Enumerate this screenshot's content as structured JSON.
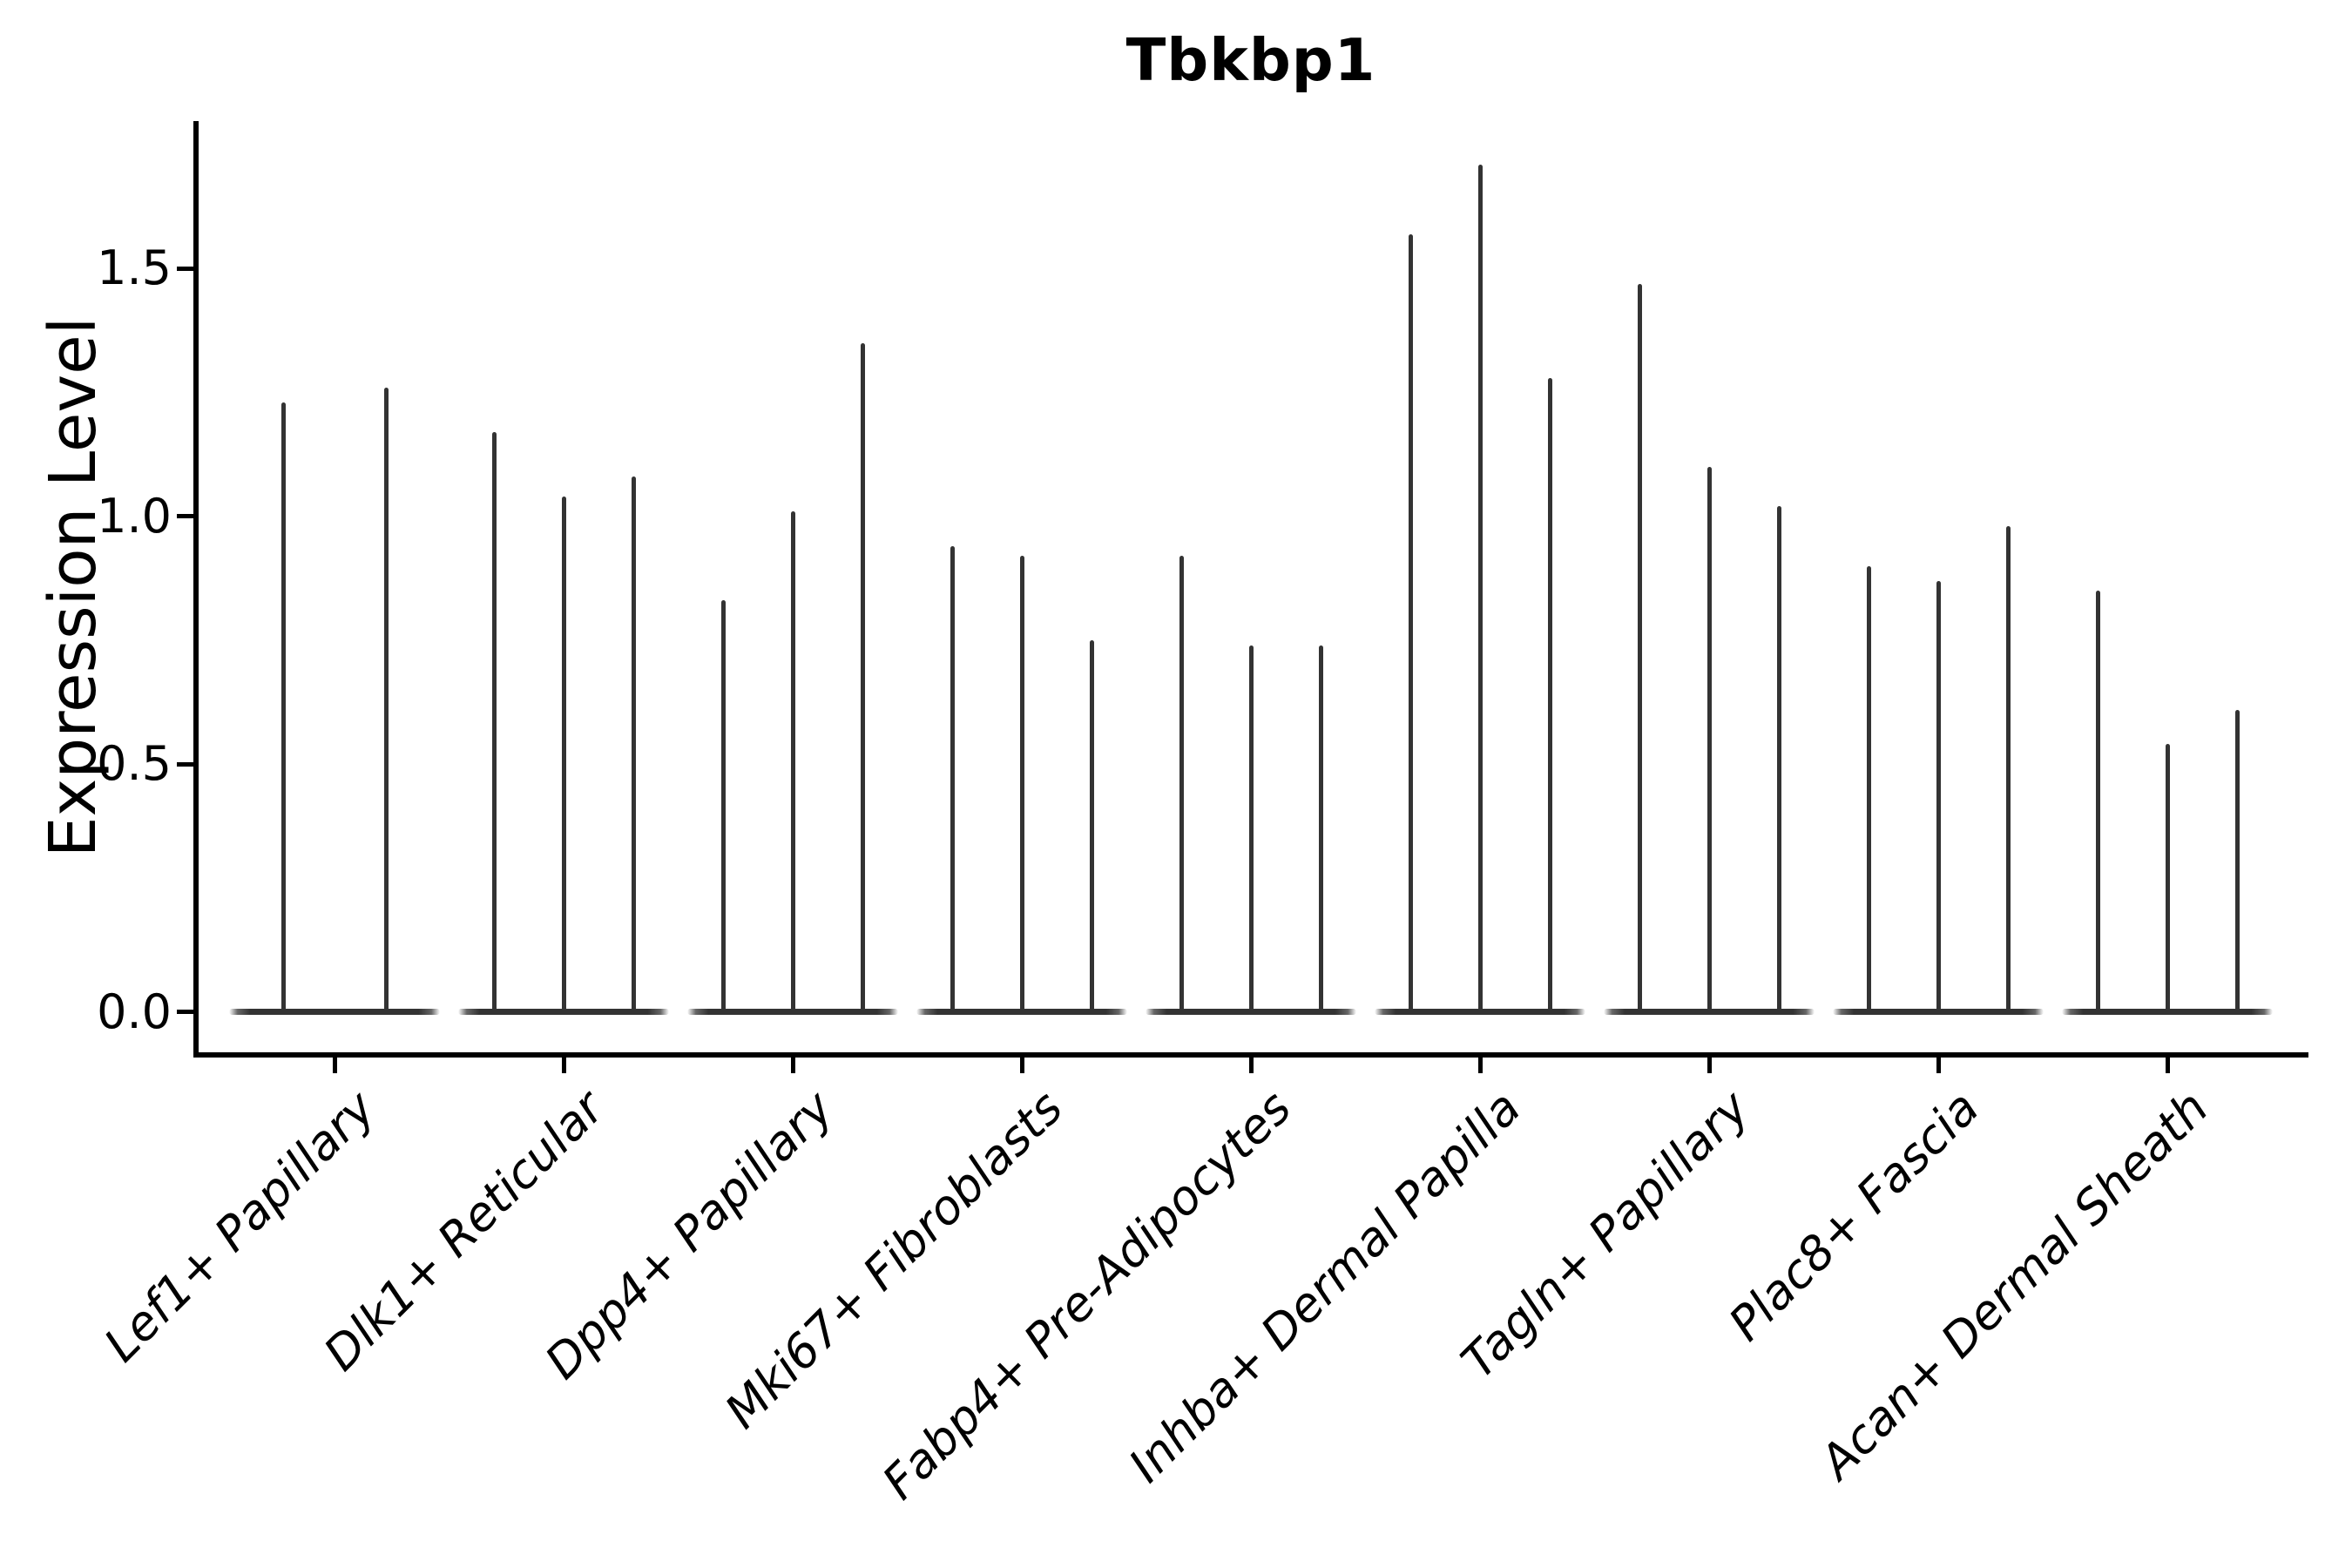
{
  "title": "Tbkbp1",
  "colors": {
    "violin": "#333333",
    "axis": "#000000",
    "background": "#ffffff"
  },
  "y_axis": {
    "label": "Expression Level",
    "tick_labels": [
      "0.0",
      "0.5",
      "1.0",
      "1.5"
    ]
  },
  "chart_data": {
    "type": "violin",
    "title": "Tbkbp1",
    "xlabel": "",
    "ylabel": "Expression Level",
    "ylim": [
      -0.09,
      1.8
    ],
    "yticks": [
      0.0,
      0.5,
      1.0,
      1.5
    ],
    "grid": false,
    "legend_position": "none",
    "x_tick_rotation": 45,
    "categories": [
      "Lef1+ Papillary",
      "Dlk1+ Reticular",
      "Dpp4+ Papillary",
      "Mki67+ Fibroblasts",
      "Fabp4+ Pre-Adipocytes",
      "Inhba+ Dermal Papilla",
      "Tagln+ Papillary",
      "Plac8+ Fascia",
      "Acan+ Dermal Sheath"
    ],
    "groups": [
      {
        "label": "Lef1+ Papillary",
        "violin_peaks": [
          1.23,
          1.26
        ]
      },
      {
        "label": "Dlk1+ Reticular",
        "violin_peaks": [
          1.17,
          1.04,
          1.08
        ]
      },
      {
        "label": "Dpp4+ Papillary",
        "violin_peaks": [
          0.83,
          1.01,
          1.35
        ]
      },
      {
        "label": "Mki67+ Fibroblasts",
        "violin_peaks": [
          0.94,
          0.92,
          0.75
        ]
      },
      {
        "label": "Fabp4+ Pre-Adipocytes",
        "violin_peaks": [
          0.92,
          0.74,
          0.74
        ]
      },
      {
        "label": "Inhba+ Dermal Papilla",
        "violin_peaks": [
          1.57,
          1.71,
          1.28
        ]
      },
      {
        "label": "Tagln+ Papillary",
        "violin_peaks": [
          1.47,
          1.1,
          1.02
        ]
      },
      {
        "label": "Plac8+ Fascia",
        "violin_peaks": [
          0.9,
          0.87,
          0.98
        ]
      },
      {
        "label": "Acan+ Dermal Sheath",
        "violin_peaks": [
          0.85,
          0.54,
          0.61
        ]
      }
    ],
    "violin_baseline_value": 0.0
  }
}
